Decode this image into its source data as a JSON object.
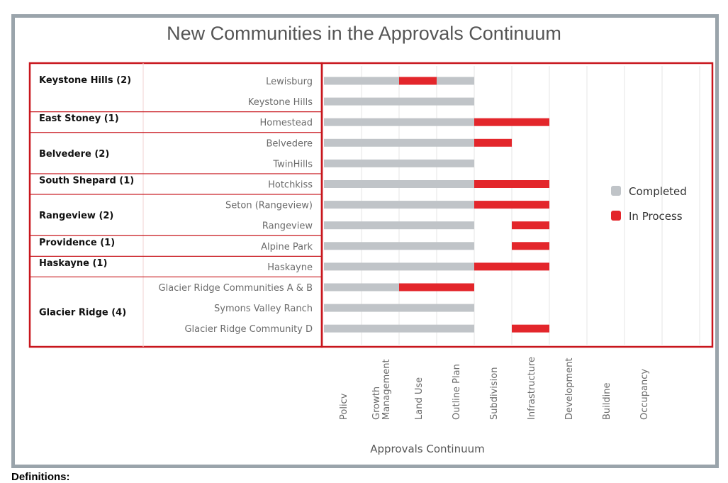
{
  "chart_data": {
    "type": "bar",
    "title": "New Communities in the Approvals Continuum",
    "xlabel": "Approvals Continuum",
    "x_stages": [
      "Policv",
      "Growth\nManagement",
      "Land Use",
      "Outline Plan",
      "Subdivision",
      "Infrastructure",
      "Development",
      "Buildine",
      "Occupancy"
    ],
    "groups": [
      {
        "label": "Keystone Hills (2)",
        "rows": [
          "Lewisburg",
          "Keystone Hills"
        ]
      },
      {
        "label": "East Stoney (1)",
        "rows": [
          "Homestead"
        ]
      },
      {
        "label": "Belvedere (2)",
        "rows": [
          "Belvedere",
          "TwinHills"
        ]
      },
      {
        "label": "South Shepard (1)",
        "rows": [
          "Hotchkiss"
        ]
      },
      {
        "label": "Rangeview (2)",
        "rows": [
          "Seton (Rangeview)",
          "Rangeview"
        ]
      },
      {
        "label": "Providence (1)",
        "rows": [
          "Alpine Park"
        ]
      },
      {
        "label": "Haskayne (1)",
        "rows": [
          "Haskayne"
        ]
      },
      {
        "label": "Glacier Ridge (4)",
        "rows": [
          "Glacier Ridge Communities A & B",
          "Symons Valley Ranch",
          "Glacier Ridge Community D"
        ]
      }
    ],
    "categories": [
      "Lewisburg",
      "Keystone Hills",
      "Homestead",
      "Belvedere",
      "TwinHills",
      "Hotchkiss",
      "Seton (Rangeview)",
      "Rangeview",
      "Alpine Park",
      "Haskayne",
      "Glacier Ridge Communities A & B",
      "Symons Valley Ranch",
      "Glacier Ridge Community D"
    ],
    "series": [
      {
        "name": "Completed",
        "color": "#c0c4c8",
        "values": [
          4,
          4,
          4,
          4,
          4,
          4,
          4,
          4,
          4,
          4,
          4,
          4,
          4
        ]
      },
      {
        "name": "In Process",
        "color": "#e3262b",
        "start": [
          2,
          0,
          4,
          4,
          0,
          4,
          4,
          5,
          5,
          4,
          2,
          0,
          5
        ],
        "values": [
          1,
          0,
          2,
          1,
          0,
          2,
          2,
          1,
          1,
          2,
          2,
          0,
          1
        ]
      }
    ],
    "xlim": [
      0,
      10
    ],
    "grid": true,
    "legend": "right"
  },
  "definitions_label": "Definitions:"
}
